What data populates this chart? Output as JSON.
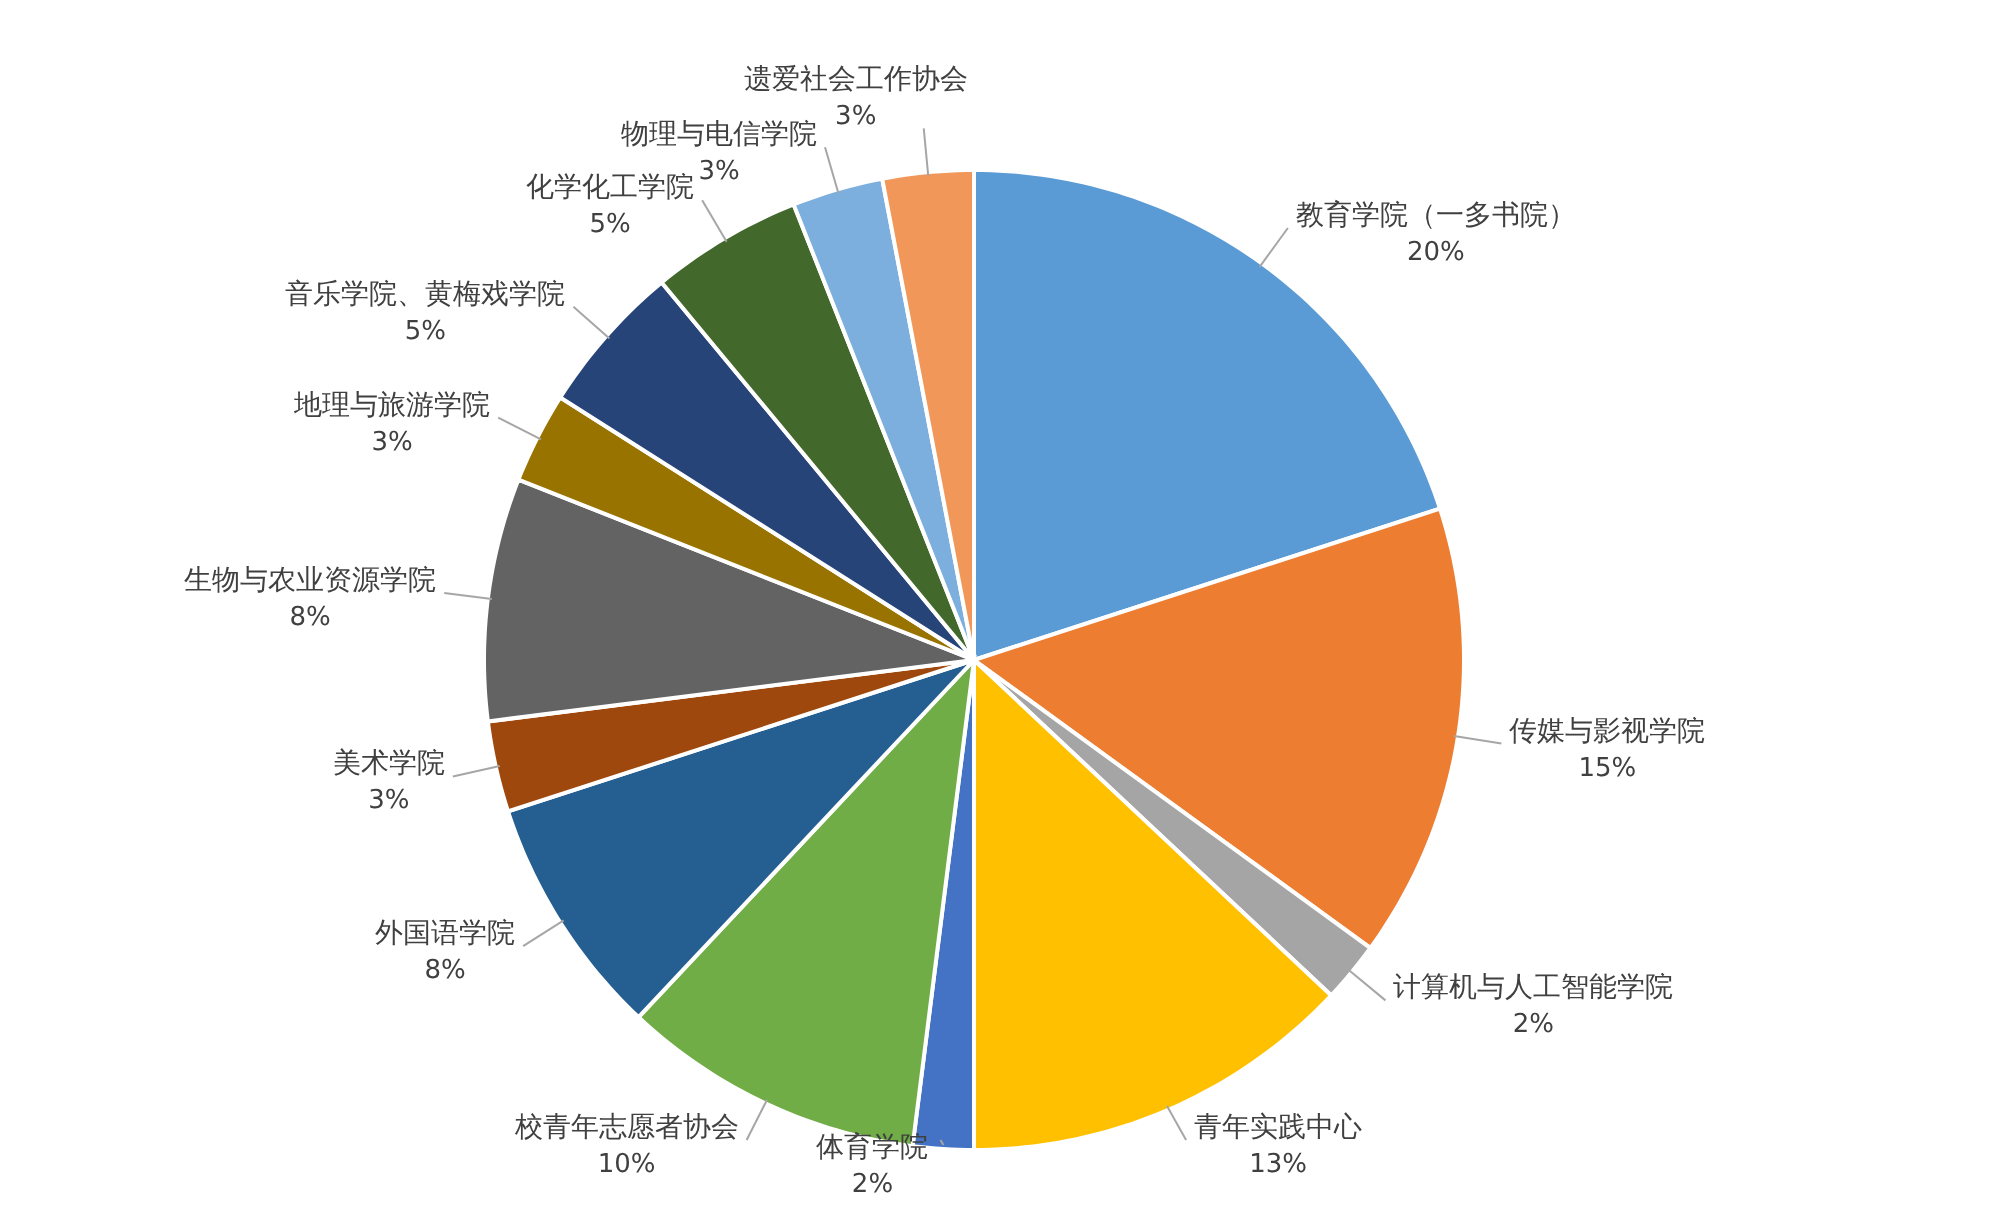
{
  "chart_data": {
    "type": "pie",
    "categories": [
      "教育学院（一多书院）",
      "传媒与影视学院",
      "计算机与人工智能学院",
      "青年实践中心",
      "体育学院",
      "校青年志愿者协会",
      "外国语学院",
      "美术学院",
      "生物与农业资源学院",
      "地理与旅游学院",
      "音乐学院、黄梅戏学院",
      "化学化工学院",
      "物理与电信学院",
      "遗爱社会工作协会"
    ],
    "values": [
      20,
      15,
      2,
      13,
      2,
      10,
      8,
      3,
      8,
      3,
      5,
      5,
      3,
      3
    ],
    "colors": [
      "#5b9bd5",
      "#ed7d31",
      "#a5a5a5",
      "#ffc000",
      "#4472c4",
      "#70ad47",
      "#255e91",
      "#9e480e",
      "#636363",
      "#997300",
      "#264478",
      "#43682b",
      "#7cafdd",
      "#f1975a"
    ],
    "value_labels": [
      "20%",
      "15%",
      "2%",
      "13%",
      "2%",
      "10%",
      "8%",
      "3%",
      "8%",
      "3%",
      "5%",
      "5%",
      "3%",
      "3%"
    ]
  }
}
